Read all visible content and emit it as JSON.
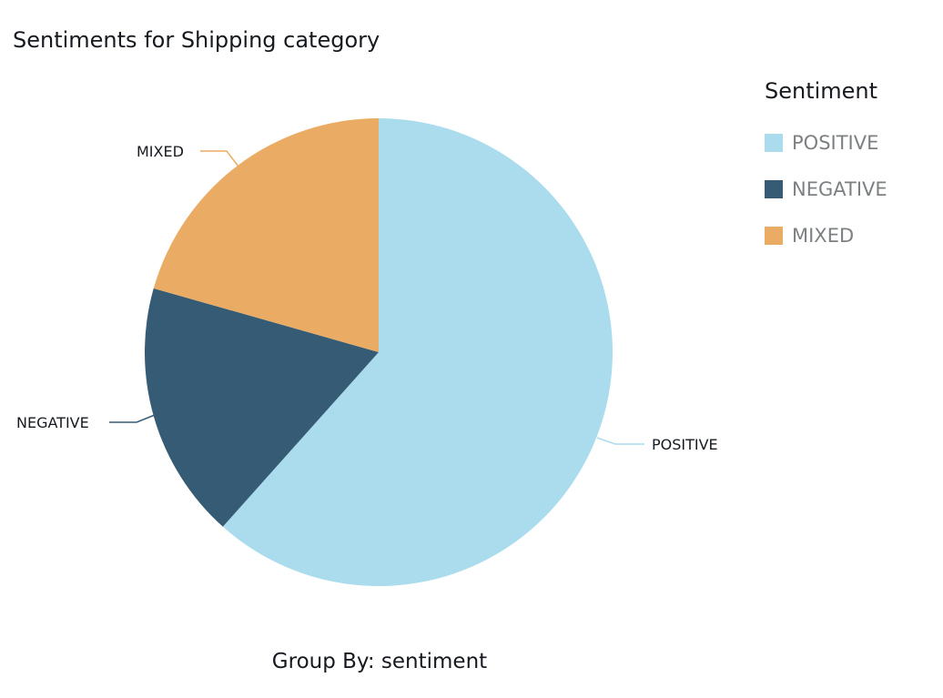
{
  "chart_data": {
    "type": "pie",
    "title": "Sentiments for Shipping category",
    "xlabel": "Group By: sentiment",
    "categories": [
      "POSITIVE",
      "NEGATIVE",
      "MIXED"
    ],
    "values": [
      61.6,
      17.8,
      20.6
    ],
    "unit": "percent (estimated)",
    "colors": [
      "#abdcee",
      "#365b75",
      "#eaac64"
    ],
    "legend": {
      "title": "Sentiment",
      "position": "right",
      "entries": [
        "POSITIVE",
        "NEGATIVE",
        "MIXED"
      ]
    },
    "start_angle": "12 o'clock, clockwise"
  },
  "title": "Sentiments for Shipping category",
  "legend": {
    "title": "Sentiment",
    "items": [
      {
        "label": "POSITIVE",
        "color": "#abdcee"
      },
      {
        "label": "NEGATIVE",
        "color": "#365b75"
      },
      {
        "label": "MIXED",
        "color": "#eaac64"
      }
    ]
  },
  "slice_labels": [
    "POSITIVE",
    "NEGATIVE",
    "MIXED"
  ],
  "xlabel": "Group By: sentiment"
}
